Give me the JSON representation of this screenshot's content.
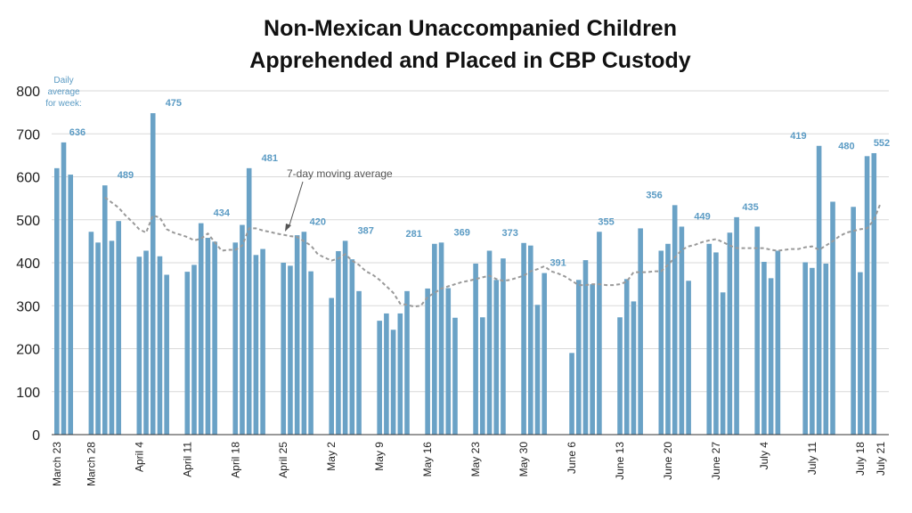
{
  "chart_data": {
    "type": "bar",
    "title_line1": "Non-Mexican Unaccompanied Children",
    "title_line2": "Apprehended and Placed in CBP Custody",
    "ylim": [
      0,
      800
    ],
    "yticks": [
      0,
      100,
      200,
      300,
      400,
      500,
      600,
      700,
      800
    ],
    "grid": true,
    "xtick_labels": [
      "March 23",
      "March 28",
      "April 4",
      "April 11",
      "April 18",
      "April 25",
      "May 2",
      "May 9",
      "May 16",
      "May 23",
      "May 30",
      "June 6",
      "June 13",
      "June 20",
      "June 27",
      "July 4",
      "July 11",
      "July 18",
      "July 21"
    ],
    "xtick_indices": [
      0,
      5,
      12,
      19,
      26,
      33,
      40,
      47,
      54,
      61,
      68,
      75,
      82,
      89,
      96,
      103,
      110,
      117,
      120
    ],
    "values": [
      620,
      680,
      605,
      null,
      null,
      472,
      447,
      580,
      451,
      497,
      null,
      null,
      414,
      428,
      748,
      415,
      372,
      null,
      null,
      379,
      395,
      492,
      458,
      449,
      null,
      null,
      447,
      488,
      620,
      418,
      432,
      null,
      null,
      400,
      393,
      464,
      472,
      380,
      null,
      null,
      318,
      427,
      451,
      408,
      334,
      null,
      null,
      265,
      282,
      244,
      282,
      334,
      null,
      null,
      340,
      444,
      447,
      341,
      272,
      null,
      null,
      398,
      273,
      428,
      360,
      410,
      null,
      null,
      446,
      440,
      302,
      376,
      null,
      null,
      null,
      190,
      360,
      406,
      350,
      472,
      null,
      null,
      273,
      362,
      310,
      480,
      null,
      null,
      428,
      444,
      534,
      484,
      358,
      null,
      null,
      444,
      424,
      331,
      470,
      506,
      null,
      null,
      484,
      402,
      364,
      428,
      null,
      null,
      null,
      401,
      388,
      672,
      398,
      542,
      null,
      null,
      530,
      378,
      648,
      655
    ],
    "moving_average": {
      "label": "7-day moving average",
      "values": [
        null,
        null,
        null,
        null,
        null,
        null,
        null,
        552,
        540,
        528,
        510,
        495,
        478,
        470,
        510,
        505,
        478,
        470,
        465,
        460,
        452,
        456,
        468,
        448,
        428,
        430,
        430,
        440,
        480,
        480,
        475,
        472,
        468,
        465,
        462,
        460,
        450,
        440,
        420,
        412,
        405,
        410,
        420,
        405,
        395,
        380,
        372,
        360,
        345,
        330,
        305,
        302,
        298,
        300,
        320,
        330,
        340,
        345,
        350,
        355,
        358,
        362,
        366,
        370,
        362,
        358,
        360,
        365,
        370,
        380,
        385,
        392,
        380,
        375,
        368,
        358,
        348,
        348,
        350,
        350,
        348,
        348,
        350,
        356,
        378,
        378,
        378,
        380,
        380,
        395,
        412,
        430,
        438,
        442,
        448,
        452,
        455,
        448,
        440,
        434,
        434,
        434,
        434,
        434,
        430,
        428,
        430,
        432,
        432,
        436,
        438,
        430,
        440,
        450,
        462,
        470,
        474,
        478,
        480,
        500,
        540
      ]
    },
    "weekly_averages": [
      {
        "index": 0,
        "value": "636"
      },
      {
        "index": 7,
        "value": "489"
      },
      {
        "index": 14,
        "value": "475"
      },
      {
        "index": 21,
        "value": "434"
      },
      {
        "index": 28,
        "value": "481"
      },
      {
        "index": 35,
        "value": "420"
      },
      {
        "index": 42,
        "value": "387"
      },
      {
        "index": 49,
        "value": "281"
      },
      {
        "index": 56,
        "value": "369"
      },
      {
        "index": 63,
        "value": "373"
      },
      {
        "index": 70,
        "value": "391"
      },
      {
        "index": 77,
        "value": "355"
      },
      {
        "index": 84,
        "value": "356"
      },
      {
        "index": 91,
        "value": "449"
      },
      {
        "index": 98,
        "value": "435"
      },
      {
        "index": 105,
        "value": "419"
      },
      {
        "index": 112,
        "value": "480"
      },
      {
        "index": 119,
        "value": "552"
      }
    ],
    "weekly_note_lines": [
      "Daily",
      "average",
      "for week:"
    ],
    "colors": {
      "bar": "#6aa2c6",
      "weekly_label": "#5b9bc4",
      "moving_average": "#9a9a9a",
      "grid": "#d9d9d9",
      "axis": "#333333"
    }
  }
}
